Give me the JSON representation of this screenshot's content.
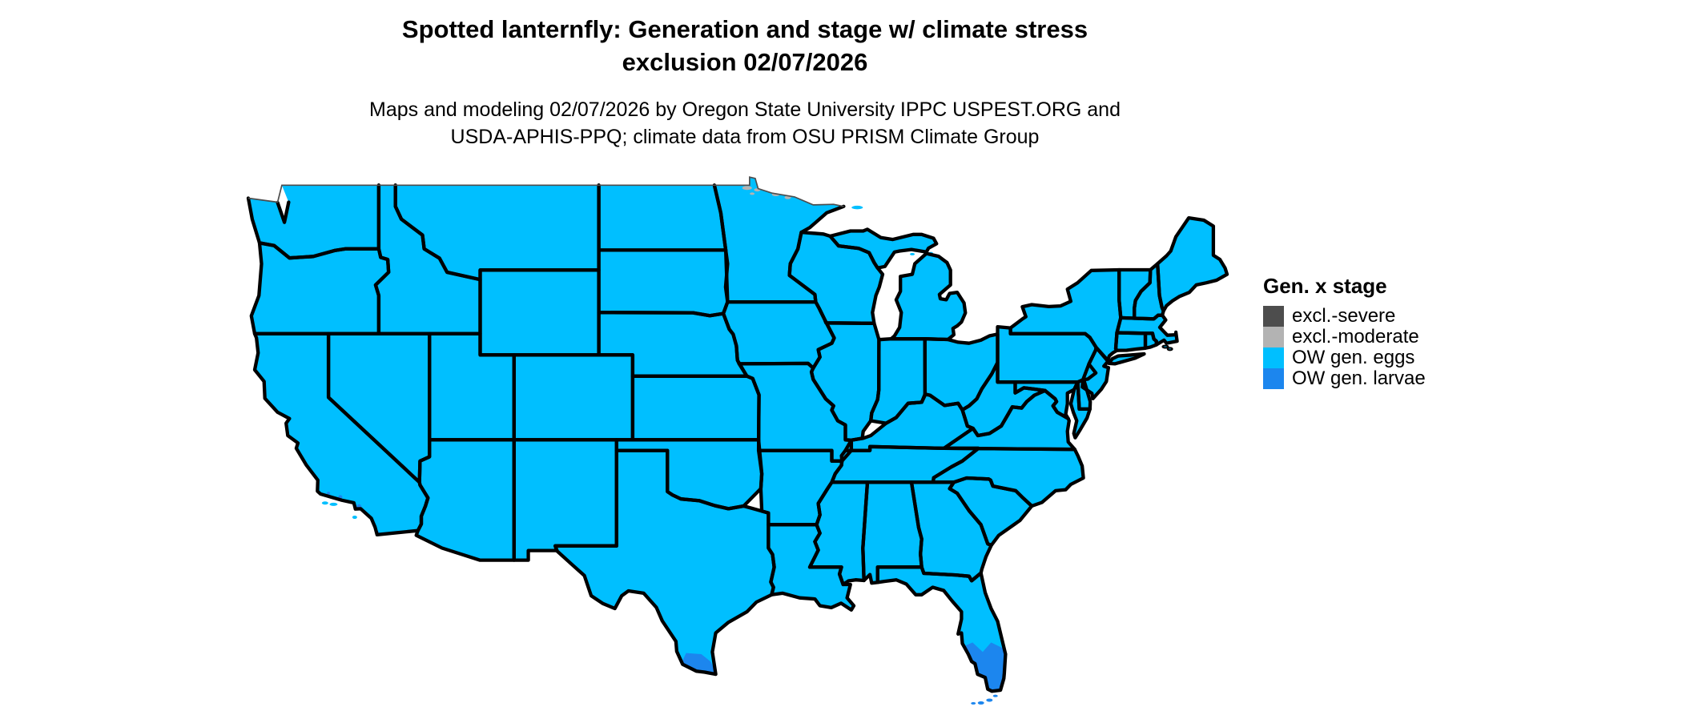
{
  "title": {
    "lines": [
      "Spotted lanternfly: Generation and stage w/ climate stress",
      "exclusion 02/07/2026"
    ]
  },
  "subtitle": {
    "lines": [
      "Maps and modeling 02/07/2026 by Oregon State University IPPC USPEST.ORG and",
      "USDA-APHIS-PPQ; climate data from OSU PRISM Climate Group"
    ]
  },
  "legend": {
    "title": "Gen. x stage",
    "items": [
      {
        "label": "excl.-severe",
        "color": "#4d4d4d"
      },
      {
        "label": "excl.-moderate",
        "color": "#b3b3b3"
      },
      {
        "label": "OW gen. eggs",
        "color": "#00bfff"
      },
      {
        "label": "OW gen. larvae",
        "color": "#1c86ee"
      }
    ]
  },
  "map": {
    "background": "#ffffff",
    "state_border_color": "#000000",
    "national_border_color": "#4d4d4d",
    "base_category": "OW gen. eggs",
    "base_color": "#00bfff",
    "regions": [
      {
        "name": "contiguous-us",
        "category": "OW gen. eggs"
      },
      {
        "name": "south-florida",
        "category": "OW gen. larvae"
      },
      {
        "name": "florida-keys",
        "category": "OW gen. larvae"
      },
      {
        "name": "south-texas-rio-grande-valley",
        "category": "OW gen. larvae"
      },
      {
        "name": "southern-california-coast-specks",
        "category": "OW gen. larvae"
      },
      {
        "name": "northern-minnesota-border-specks",
        "category": "excl.-moderate"
      }
    ]
  }
}
